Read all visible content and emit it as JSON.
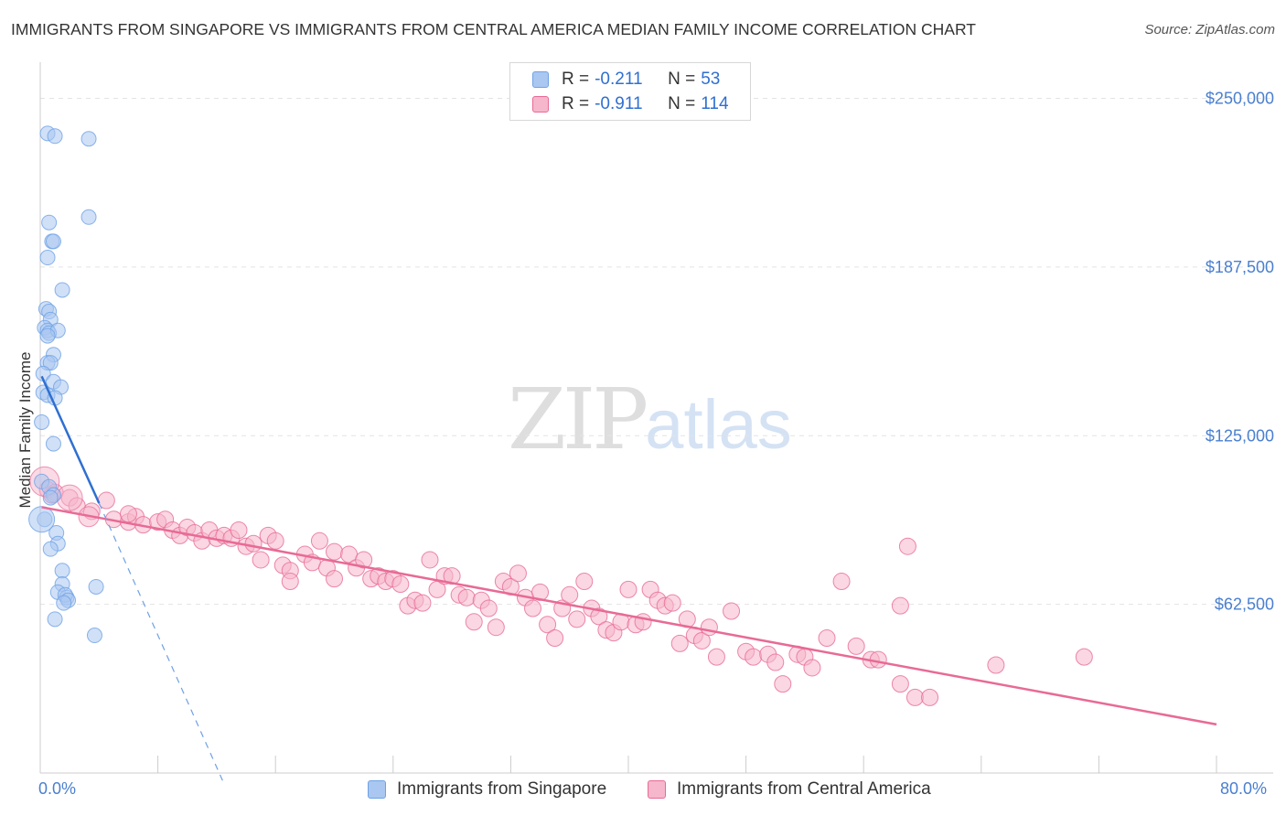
{
  "title": "IMMIGRANTS FROM SINGAPORE VS IMMIGRANTS FROM CENTRAL AMERICA MEDIAN FAMILY INCOME CORRELATION CHART",
  "source": "Source: ZipAtlas.com",
  "watermark": {
    "zip": "ZIP",
    "atlas": "atlas"
  },
  "legend": {
    "rows": [
      {
        "r_label": "R =",
        "r_value": "-0.211",
        "n_label": "N =",
        "n_value": "53",
        "color": "#a9c7f0"
      },
      {
        "r_label": "R =",
        "r_value": "-0.911",
        "n_label": "N =",
        "n_value": "114",
        "color": "#f6b6cb"
      }
    ]
  },
  "bottom_legend": {
    "singapore": "Immigrants from Singapore",
    "central_america": "Immigrants from Central America"
  },
  "chart_data": {
    "type": "scatter",
    "title": "IMMIGRANTS FROM SINGAPORE VS IMMIGRANTS FROM CENTRAL AMERICA MEDIAN FAMILY INCOME CORRELATION CHART",
    "xlabel": "",
    "ylabel": "Median Family Income",
    "xlim": [
      0,
      80
    ],
    "ylim": [
      0,
      260000
    ],
    "x_tick_labels": [
      "0.0%",
      "80.0%"
    ],
    "y_ticks": [
      62500,
      125000,
      187500,
      250000
    ],
    "y_tick_labels": [
      "$62,500",
      "$125,000",
      "$187,500",
      "$250,000"
    ],
    "series": [
      {
        "name": "Immigrants from Singapore",
        "color": "#6ea1e6",
        "fill": "#a9c7f0",
        "trend": {
          "x": [
            0.1,
            4.0
          ],
          "y": [
            147000,
            100000
          ]
        },
        "trend_extension": {
          "x": [
            4.0,
            12.5
          ],
          "y": [
            100000,
            -4000
          ]
        },
        "points": [
          [
            0.5,
            237000
          ],
          [
            1.0,
            236000
          ],
          [
            3.3,
            235000
          ],
          [
            3.3,
            206000
          ],
          [
            0.6,
            204000
          ],
          [
            0.8,
            197000
          ],
          [
            0.9,
            197000
          ],
          [
            0.5,
            191000
          ],
          [
            1.5,
            179000
          ],
          [
            0.4,
            172000
          ],
          [
            0.6,
            171000
          ],
          [
            0.7,
            168000
          ],
          [
            0.3,
            165000
          ],
          [
            0.5,
            164000
          ],
          [
            0.6,
            163000
          ],
          [
            1.2,
            164000
          ],
          [
            0.5,
            162000
          ],
          [
            0.9,
            155000
          ],
          [
            0.5,
            152000
          ],
          [
            0.7,
            152000
          ],
          [
            0.2,
            148000
          ],
          [
            0.9,
            145000
          ],
          [
            1.4,
            143000
          ],
          [
            0.2,
            141000
          ],
          [
            0.5,
            140000
          ],
          [
            1.0,
            139000
          ],
          [
            0.1,
            130000
          ],
          [
            0.9,
            122000
          ],
          [
            0.1,
            108000
          ],
          [
            0.6,
            106000
          ],
          [
            0.9,
            103000
          ],
          [
            0.7,
            102000
          ],
          [
            0.3,
            94000
          ],
          [
            1.1,
            89000
          ],
          [
            1.2,
            85000
          ],
          [
            0.7,
            83000
          ],
          [
            1.5,
            75000
          ],
          [
            1.5,
            70000
          ],
          [
            3.8,
            69000
          ],
          [
            1.2,
            67000
          ],
          [
            1.8,
            65000
          ],
          [
            1.7,
            66000
          ],
          [
            1.9,
            64000
          ],
          [
            1.6,
            63000
          ],
          [
            1.0,
            57000
          ],
          [
            3.7,
            51000
          ]
        ]
      },
      {
        "name": "Immigrants from Central America",
        "color": "#e86a96",
        "fill": "#f6b6cb",
        "trend": {
          "x": [
            0.1,
            80.0
          ],
          "y": [
            98500,
            18000
          ]
        },
        "points": [
          [
            0.5,
            105000
          ],
          [
            1.0,
            104000
          ],
          [
            2.0,
            102000
          ],
          [
            3.5,
            97000
          ],
          [
            4.5,
            101000
          ],
          [
            5.0,
            94000
          ],
          [
            6.0,
            93000
          ],
          [
            6.5,
            95000
          ],
          [
            7.0,
            92000
          ],
          [
            8.0,
            93000
          ],
          [
            8.5,
            94000
          ],
          [
            9.0,
            90000
          ],
          [
            9.5,
            88000
          ],
          [
            10.0,
            91000
          ],
          [
            10.5,
            89000
          ],
          [
            11.0,
            86000
          ],
          [
            11.5,
            90000
          ],
          [
            12.0,
            87000
          ],
          [
            12.5,
            88000
          ],
          [
            13.0,
            87000
          ],
          [
            13.5,
            90000
          ],
          [
            14.0,
            84000
          ],
          [
            14.5,
            85000
          ],
          [
            15.0,
            79000
          ],
          [
            15.5,
            88000
          ],
          [
            16.0,
            86000
          ],
          [
            16.5,
            77000
          ],
          [
            17.0,
            75000
          ],
          [
            17.0,
            71000
          ],
          [
            18.0,
            81000
          ],
          [
            18.5,
            78000
          ],
          [
            19.0,
            86000
          ],
          [
            19.5,
            76000
          ],
          [
            20.0,
            72000
          ],
          [
            20.0,
            82000
          ],
          [
            21.0,
            81000
          ],
          [
            21.5,
            76000
          ],
          [
            22.0,
            79000
          ],
          [
            22.5,
            72000
          ],
          [
            23.0,
            73000
          ],
          [
            23.5,
            71000
          ],
          [
            24.0,
            72000
          ],
          [
            24.5,
            70000
          ],
          [
            25.0,
            62000
          ],
          [
            25.5,
            64000
          ],
          [
            26.0,
            63000
          ],
          [
            26.5,
            79000
          ],
          [
            27.0,
            68000
          ],
          [
            27.5,
            73000
          ],
          [
            28.0,
            73000
          ],
          [
            28.5,
            66000
          ],
          [
            29.0,
            65000
          ],
          [
            29.5,
            56000
          ],
          [
            30.0,
            64000
          ],
          [
            30.5,
            61000
          ],
          [
            31.0,
            54000
          ],
          [
            31.5,
            71000
          ],
          [
            32.0,
            69000
          ],
          [
            32.5,
            74000
          ],
          [
            33.0,
            65000
          ],
          [
            33.5,
            61000
          ],
          [
            34.0,
            67000
          ],
          [
            34.5,
            55000
          ],
          [
            35.0,
            50000
          ],
          [
            35.5,
            61000
          ],
          [
            36.0,
            66000
          ],
          [
            36.5,
            57000
          ],
          [
            37.0,
            71000
          ],
          [
            37.5,
            61000
          ],
          [
            38.0,
            58000
          ],
          [
            38.5,
            53000
          ],
          [
            39.0,
            52000
          ],
          [
            39.5,
            56000
          ],
          [
            40.0,
            68000
          ],
          [
            40.5,
            55000
          ],
          [
            41.0,
            56000
          ],
          [
            41.5,
            68000
          ],
          [
            42.0,
            64000
          ],
          [
            42.5,
            62000
          ],
          [
            43.0,
            63000
          ],
          [
            43.5,
            48000
          ],
          [
            44.0,
            57000
          ],
          [
            44.5,
            51000
          ],
          [
            45.0,
            49000
          ],
          [
            45.5,
            54000
          ],
          [
            46.0,
            43000
          ],
          [
            47.0,
            60000
          ],
          [
            48.0,
            45000
          ],
          [
            48.5,
            43000
          ],
          [
            49.5,
            44000
          ],
          [
            50.0,
            41000
          ],
          [
            50.5,
            33000
          ],
          [
            51.5,
            44000
          ],
          [
            52.0,
            43000
          ],
          [
            52.5,
            39000
          ],
          [
            53.5,
            50000
          ],
          [
            54.5,
            71000
          ],
          [
            55.5,
            47000
          ],
          [
            56.5,
            42000
          ],
          [
            57.0,
            42000
          ],
          [
            58.5,
            33000
          ],
          [
            58.5,
            62000
          ],
          [
            59.0,
            84000
          ],
          [
            59.5,
            28000
          ],
          [
            60.5,
            28000
          ],
          [
            65.0,
            40000
          ],
          [
            71.0,
            43000
          ],
          [
            0.8,
            103000
          ],
          [
            2.5,
            99000
          ],
          [
            6.0,
            96000
          ]
        ]
      }
    ]
  }
}
